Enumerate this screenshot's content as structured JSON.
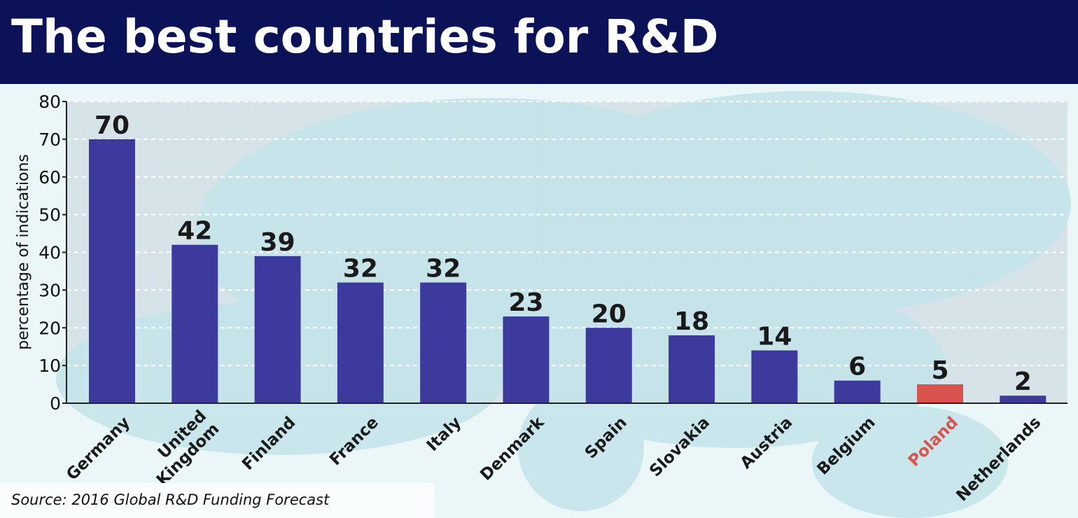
{
  "chart_data": {
    "type": "bar",
    "title": "The best countries for R&D",
    "ylabel": "percentage of indications",
    "xlabel": "",
    "ylim": [
      0,
      80
    ],
    "yticks": [
      0,
      10,
      20,
      30,
      40,
      50,
      60,
      70,
      80
    ],
    "grid": true,
    "categories": [
      "Germany",
      "United Kingdom",
      "Finland",
      "France",
      "Italy",
      "Denmark",
      "Spain",
      "Slovakia",
      "Austria",
      "Belgium",
      "Poland",
      "Netherlands"
    ],
    "values": [
      70,
      42,
      39,
      32,
      32,
      23,
      20,
      18,
      14,
      6,
      5,
      2
    ],
    "bar_color": "#3c3a9c",
    "highlight": {
      "category": "Poland",
      "color": "#d9534f"
    },
    "source": "Source: 2016 Global R&D Funding Forecast"
  }
}
